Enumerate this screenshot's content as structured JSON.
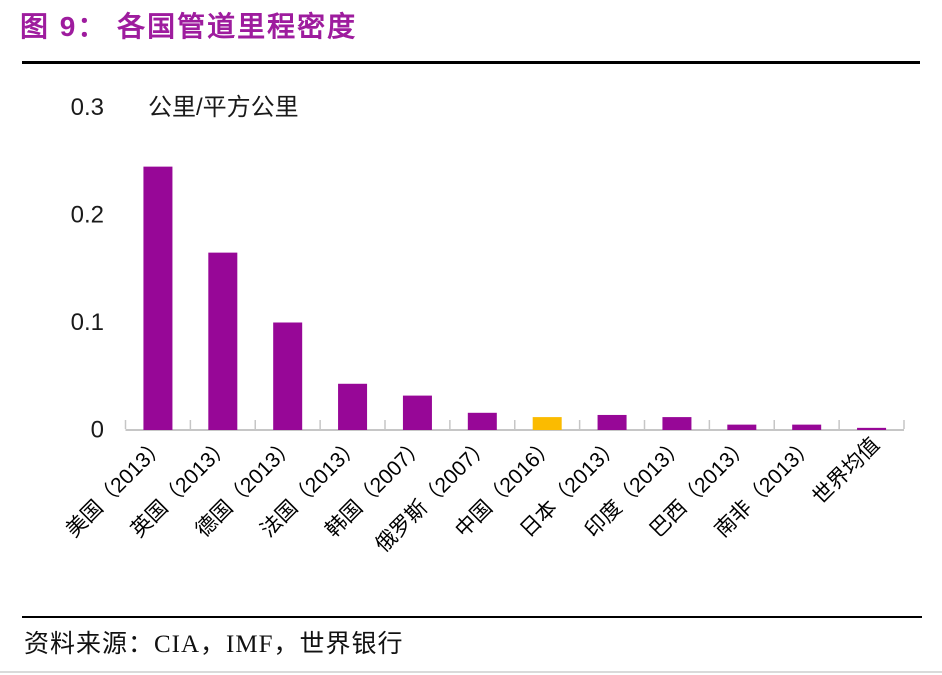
{
  "header": {
    "title": "图 9： 各国管道里程密度",
    "title_color": "#9E1C9E"
  },
  "chart_data": {
    "type": "bar",
    "title": "图 9： 各国管道里程密度",
    "unit_label": "公里/平方公里",
    "categories": [
      "美国（2013）",
      "英国（2013）",
      "德国（2013）",
      "法国（2013）",
      "韩国（2007）",
      "俄罗斯（2007）",
      "中国（2016）",
      "日本（2013）",
      "印度（2013）",
      "巴西（2013）",
      "南非（2013）",
      "世界均值"
    ],
    "values": [
      0.245,
      0.165,
      0.1,
      0.043,
      0.032,
      0.016,
      0.012,
      0.014,
      0.012,
      0.005,
      0.005,
      0.002
    ],
    "highlight_index": 6,
    "bar_color": "#970797",
    "highlight_color": "#FBBB00",
    "ylabel": "公里/平方公里",
    "ylim": [
      0,
      0.3
    ],
    "yticks": [
      0,
      0.1,
      0.2,
      0.3
    ],
    "ytick_labels": [
      "0",
      "0.1",
      "0.2",
      "0.3"
    ],
    "grid": false,
    "legend_position": "none",
    "x_label_rotation_deg": -45
  },
  "source": {
    "label": "资料来源：CIA，IMF，世界银行"
  },
  "colors": {
    "axis": "#C6C6C6",
    "tick_text": "#1A1A1A",
    "x_label_text": "#000000",
    "top_rule": "#000000",
    "source_rule": "#000000",
    "bottom_rule": "#DADADA"
  }
}
